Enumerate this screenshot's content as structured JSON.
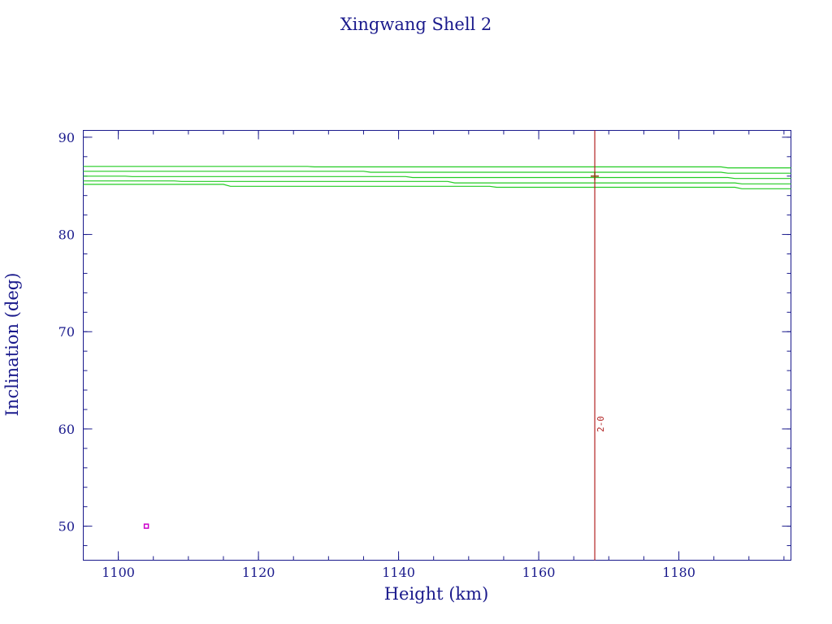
{
  "chart_data": {
    "type": "line",
    "title": "Xingwang Shell 2",
    "xlabel": "Height (km)",
    "ylabel": "Inclination (deg)",
    "xlim": [
      1095,
      1196
    ],
    "ylim": [
      46.5,
      90.7
    ],
    "x_ticks": [
      1100,
      1120,
      1140,
      1160,
      1180
    ],
    "y_ticks": [
      50,
      60,
      70,
      80,
      90
    ],
    "x_minor_step": 5,
    "y_minor_step": 2,
    "grid": false,
    "series": [
      {
        "color": "#22cc22",
        "points": [
          [
            1095,
            87.0
          ],
          [
            1127,
            87.0
          ],
          [
            1128,
            86.95
          ],
          [
            1186,
            86.95
          ],
          [
            1187,
            86.85
          ],
          [
            1196,
            86.85
          ]
        ]
      },
      {
        "color": "#22cc22",
        "points": [
          [
            1095,
            86.5
          ],
          [
            1135,
            86.5
          ],
          [
            1136,
            86.4
          ],
          [
            1186,
            86.4
          ],
          [
            1187,
            86.3
          ],
          [
            1196,
            86.3
          ]
        ]
      },
      {
        "color": "#22cc22",
        "points": [
          [
            1095,
            86.0
          ],
          [
            1101,
            86.0
          ],
          [
            1102,
            85.95
          ],
          [
            1141,
            85.95
          ],
          [
            1142,
            85.85
          ],
          [
            1187,
            85.85
          ],
          [
            1188,
            85.75
          ],
          [
            1196,
            85.75
          ]
        ]
      },
      {
        "color": "#22cc22",
        "points": [
          [
            1095,
            85.5
          ],
          [
            1108,
            85.5
          ],
          [
            1109,
            85.45
          ],
          [
            1147,
            85.45
          ],
          [
            1148,
            85.3
          ],
          [
            1188,
            85.3
          ],
          [
            1189,
            85.2
          ],
          [
            1196,
            85.2
          ]
        ]
      },
      {
        "color": "#22cc22",
        "points": [
          [
            1095,
            85.15
          ],
          [
            1115,
            85.15
          ],
          [
            1116,
            84.95
          ],
          [
            1153,
            84.95
          ],
          [
            1154,
            84.85
          ],
          [
            1188,
            84.85
          ],
          [
            1189,
            84.7
          ],
          [
            1196,
            84.7
          ]
        ]
      }
    ],
    "vertical_line": {
      "x": 1168,
      "color": "#b22222"
    },
    "markers": [
      {
        "shape": "plus",
        "x": 1168,
        "y": 86.0,
        "color": "#8b4513"
      },
      {
        "shape": "square",
        "x": 1104,
        "y": 50.0,
        "color": "#cc00cc"
      }
    ],
    "annotations": [
      {
        "text": "2-0",
        "x": 1168,
        "y": 60.5,
        "color": "#b22222"
      }
    ],
    "colors": {
      "axis": "#1a1a8c",
      "text": "#1a1a8c"
    }
  }
}
